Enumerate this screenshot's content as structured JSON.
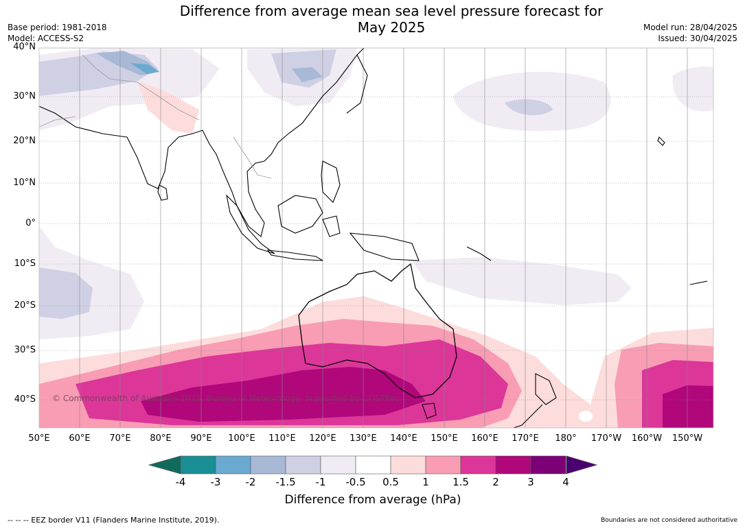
{
  "title_line1": "Difference from average mean sea level pressure forecast for",
  "title_line2": "May 2025",
  "meta_left": [
    "Base period: 1981-2018",
    "Model: ACCESS-S2"
  ],
  "meta_right": [
    "Model run: 28/04/2025",
    "Issued: 30/04/2025"
  ],
  "lat_labels": [
    "40°N",
    "30°N",
    "20°N",
    "10°N",
    "0°",
    "10°S",
    "20°S",
    "30°S",
    "40°S"
  ],
  "lon_labels": [
    "50°E",
    "60°E",
    "70°E",
    "80°E",
    "90°E",
    "100°E",
    "110°E",
    "120°E",
    "130°E",
    "140°E",
    "150°E",
    "160°E",
    "170°E",
    "180°",
    "170°W",
    "160°W",
    "150°W"
  ],
  "copyright": "© Commonwealth of Australia 2025, Bureau of Meteorology, supported by COSPPac",
  "colorbar": {
    "ticks": [
      "-4",
      "-3",
      "-2",
      "-1.5",
      "-1",
      "-0.5",
      "0.5",
      "1",
      "1.5",
      "2",
      "3",
      "4"
    ],
    "colors": [
      "#1a8f95",
      "#6aaad0",
      "#a8b9d6",
      "#cfd0e4",
      "#f1ecf4",
      "#ffffff",
      "#fddcdc",
      "#f89db4",
      "#dc3699",
      "#b0077a",
      "#7c0076"
    ],
    "under_color": "#106b5c",
    "over_color": "#4a0070",
    "title": "Difference from average (hPa)"
  },
  "footer_left": "--  --  -- EEZ border V11 (Flanders Marine Institute, 2019).",
  "footer_right": "Boundaries are not considered authoritative"
}
